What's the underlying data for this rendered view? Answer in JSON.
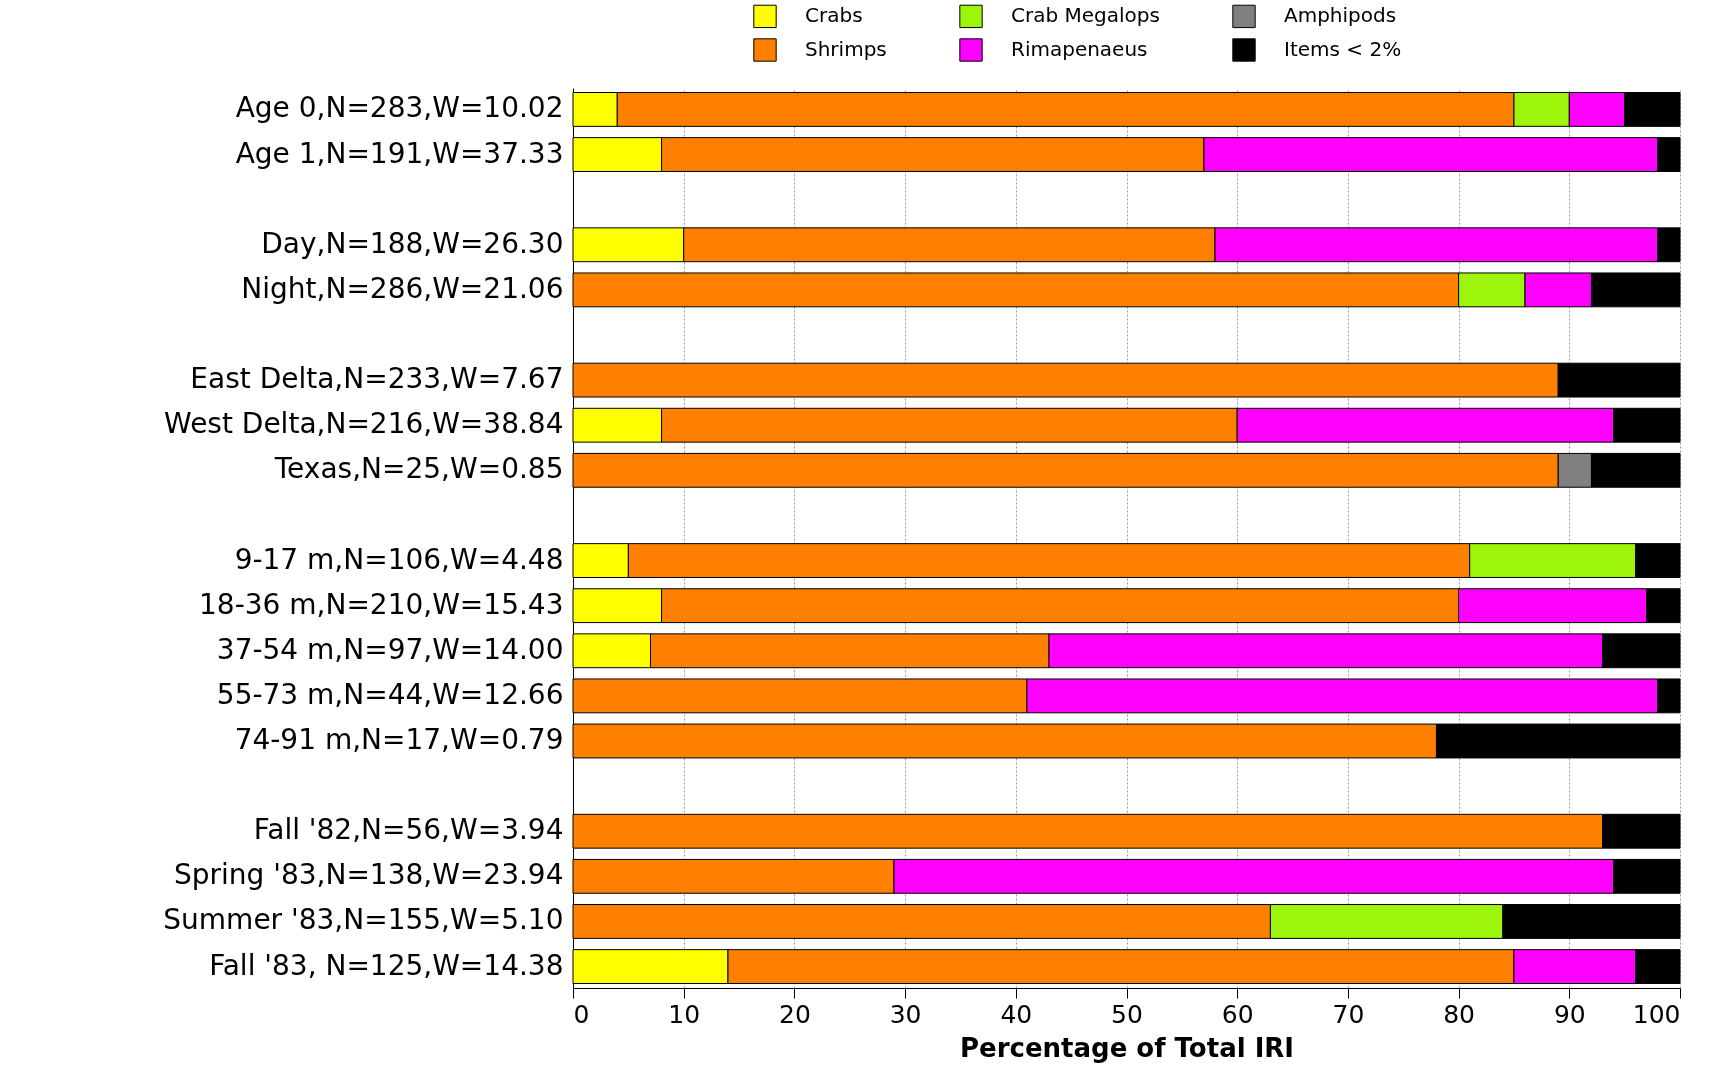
{
  "chart_data": {
    "type": "bar",
    "orientation": "horizontal",
    "stacked": true,
    "xlabel": "Percentage of Total IRI",
    "categories": [
      "Age 0,N=283,W=10.02",
      "Age 1,N=191,W=37.33",
      null,
      "Day,N=188,W=26.30",
      "Night,N=286,W=21.06",
      null,
      "East Delta,N=233,W=7.67",
      "West Delta,N=216,W=38.84",
      "Texas,N=25,W=0.85",
      null,
      "9-17 m,N=106,W=4.48",
      "18-36 m,N=210,W=15.43",
      "37-54 m,N=97,W=14.00",
      "55-73 m,N=44,W=12.66",
      "74-91 m,N=17,W=0.79",
      null,
      "Fall '82,N=56,W=3.94",
      "Spring '83,N=138,W=23.94",
      "Summer '83,N=155,W=5.10",
      "Fall '83, N=125,W=14.38"
    ],
    "series": [
      {
        "name": "Crabs",
        "color": "#ffff00",
        "values": [
          4,
          8,
          null,
          10,
          null,
          null,
          null,
          8,
          null,
          null,
          5,
          8,
          7,
          null,
          null,
          null,
          null,
          null,
          null,
          14
        ]
      },
      {
        "name": "Shrimps",
        "color": "#ff8000",
        "values": [
          81,
          49,
          null,
          48,
          80,
          null,
          89,
          52,
          89,
          null,
          76,
          72,
          36,
          41,
          78,
          null,
          93,
          29,
          63,
          71
        ]
      },
      {
        "name": "Crab Megalops",
        "color": "#9cf50a",
        "values": [
          5,
          null,
          null,
          null,
          6,
          null,
          null,
          null,
          null,
          null,
          15,
          null,
          null,
          null,
          null,
          null,
          null,
          null,
          21,
          null
        ]
      },
      {
        "name": "Rimapenaeus",
        "color": "#ff00ff",
        "values": [
          5,
          41,
          null,
          40,
          6,
          null,
          null,
          34,
          null,
          null,
          null,
          17,
          50,
          57,
          null,
          null,
          null,
          65,
          null,
          11
        ]
      },
      {
        "name": "Amphipods",
        "color": "#808080",
        "values": [
          null,
          null,
          null,
          null,
          null,
          null,
          null,
          null,
          3,
          null,
          null,
          null,
          null,
          null,
          null,
          null,
          null,
          null,
          null,
          null
        ]
      },
      {
        "name": "Items < 2%",
        "color": "#000000",
        "values": [
          5,
          2,
          null,
          2,
          8,
          null,
          11,
          6,
          8,
          null,
          4,
          3,
          7,
          2,
          22,
          null,
          7,
          6,
          16,
          4
        ]
      }
    ],
    "xlim": [
      0,
      100
    ],
    "xticks": [
      0,
      10,
      20,
      30,
      40,
      50,
      60,
      70,
      80,
      90,
      100
    ],
    "grid": "x",
    "legend": "top right"
  }
}
